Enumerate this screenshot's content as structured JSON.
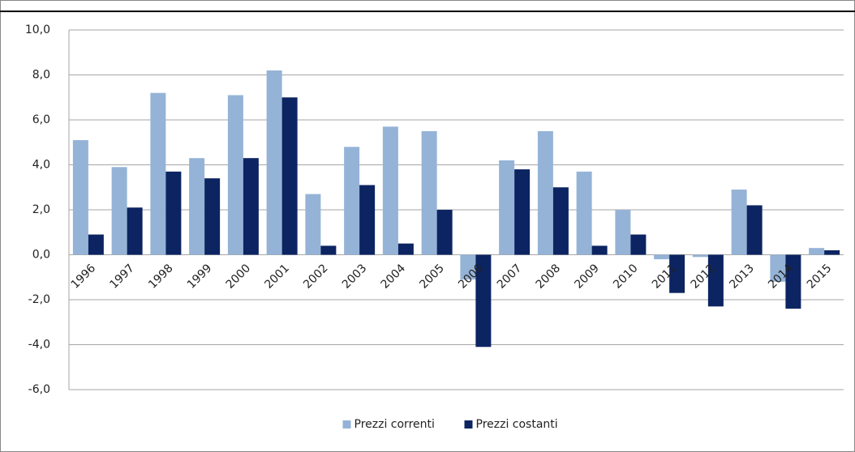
{
  "chart_data": {
    "type": "bar",
    "categories": [
      "1996",
      "1997",
      "1998",
      "1999",
      "2000",
      "2001",
      "2002",
      "2003",
      "2004",
      "2005",
      "2006",
      "2007",
      "2008",
      "2009",
      "2010",
      "2011",
      "2012",
      "2013",
      "2014",
      "2015"
    ],
    "series": [
      {
        "name": "Prezzi correnti",
        "color": "#95b3d7",
        "values": [
          5.1,
          3.9,
          7.2,
          4.3,
          7.1,
          8.2,
          2.7,
          4.8,
          5.7,
          5.5,
          -1.1,
          4.2,
          5.5,
          3.7,
          2.0,
          -0.2,
          -0.1,
          2.9,
          -1.2,
          0.3
        ]
      },
      {
        "name": "Prezzi costanti",
        "color": "#0c2461",
        "values": [
          0.9,
          2.1,
          3.7,
          3.4,
          4.3,
          7.0,
          0.4,
          3.1,
          0.5,
          2.0,
          -4.1,
          3.8,
          3.0,
          0.4,
          0.9,
          -1.7,
          -2.3,
          2.2,
          -2.4,
          0.2
        ]
      }
    ],
    "ylim": [
      -6,
      10
    ],
    "yticks": [
      {
        "value": -6,
        "label": "-6,0"
      },
      {
        "value": -4,
        "label": "-4,0"
      },
      {
        "value": -2,
        "label": "-2,0"
      },
      {
        "value": 0,
        "label": "0,0"
      },
      {
        "value": 2,
        "label": "2,0"
      },
      {
        "value": 4,
        "label": "4,0"
      },
      {
        "value": 6,
        "label": "6,0"
      },
      {
        "value": 8,
        "label": "8,0"
      },
      {
        "value": 10,
        "label": "10,0"
      }
    ],
    "grid": true,
    "legend": "bottom"
  }
}
